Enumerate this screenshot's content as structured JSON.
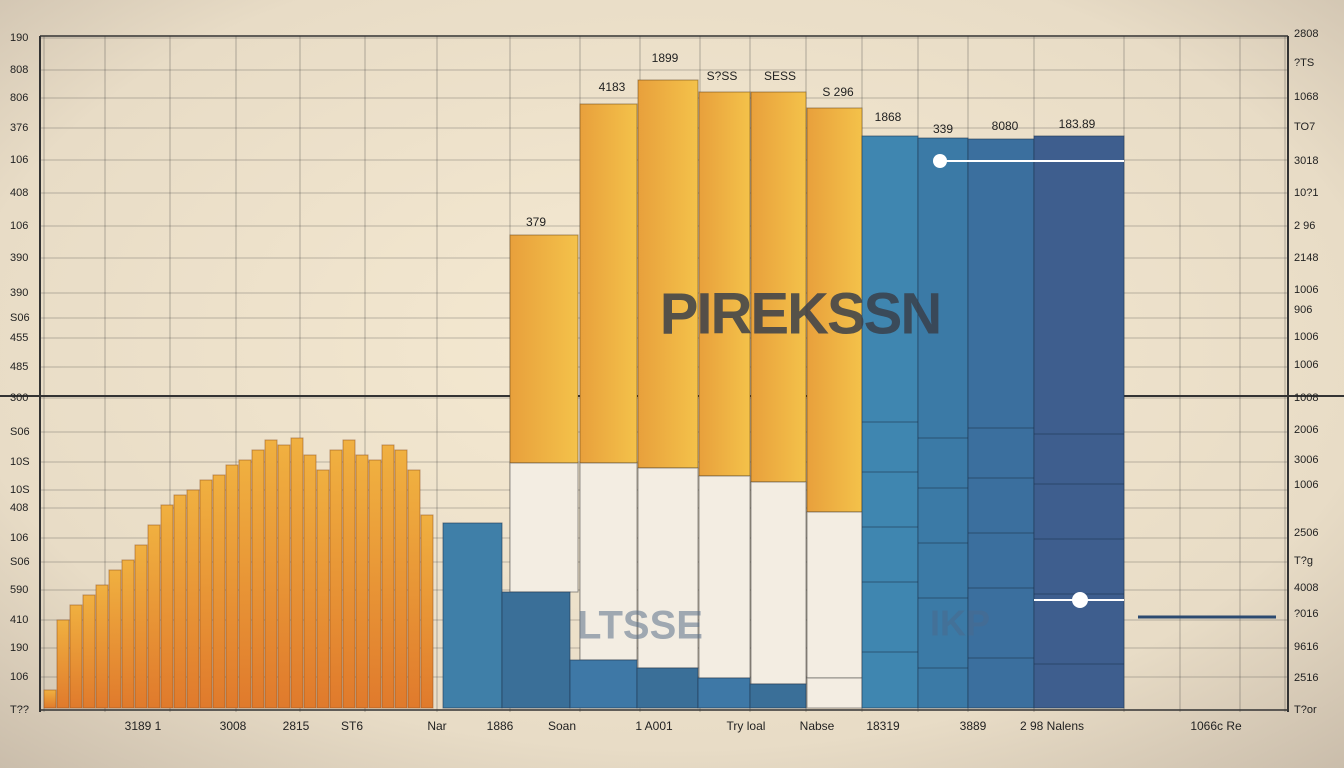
{
  "left_labels": [
    "190",
    "808",
    "806",
    "376",
    "106",
    "408",
    "106",
    "390",
    "390",
    "S06",
    "455",
    "485",
    "300",
    "S06",
    "10S",
    "10S",
    "408",
    "106",
    "S06",
    "590",
    "410",
    "190",
    "106",
    "T??"
  ],
  "right_labels": [
    "2808",
    "?TS",
    "1068",
    "TO7",
    "3018",
    "10?1",
    "2 96",
    "2148",
    "1006",
    "906",
    "1006",
    "1006",
    "1008",
    "2006",
    "3006",
    "1006",
    "2506",
    "T?g",
    "4008",
    "?016",
    "9616",
    "2516",
    "T?or"
  ],
  "bottom_labels": [
    "3189 1",
    "3008",
    "2815",
    "ST6",
    "Nar",
    "1886",
    "Soan",
    "1 A001",
    "Try loal",
    "Nabse",
    "18319",
    "3889",
    "2 98 Nalens",
    "1066c Re"
  ],
  "bar_labels": [
    "1899",
    "4183",
    "S?SS",
    "SESS",
    "S 296",
    "1868",
    "339",
    "8080",
    "183.89",
    "379"
  ],
  "watermarks": [
    "PIREKSSN",
    "LTSSE",
    "IKP"
  ]
}
